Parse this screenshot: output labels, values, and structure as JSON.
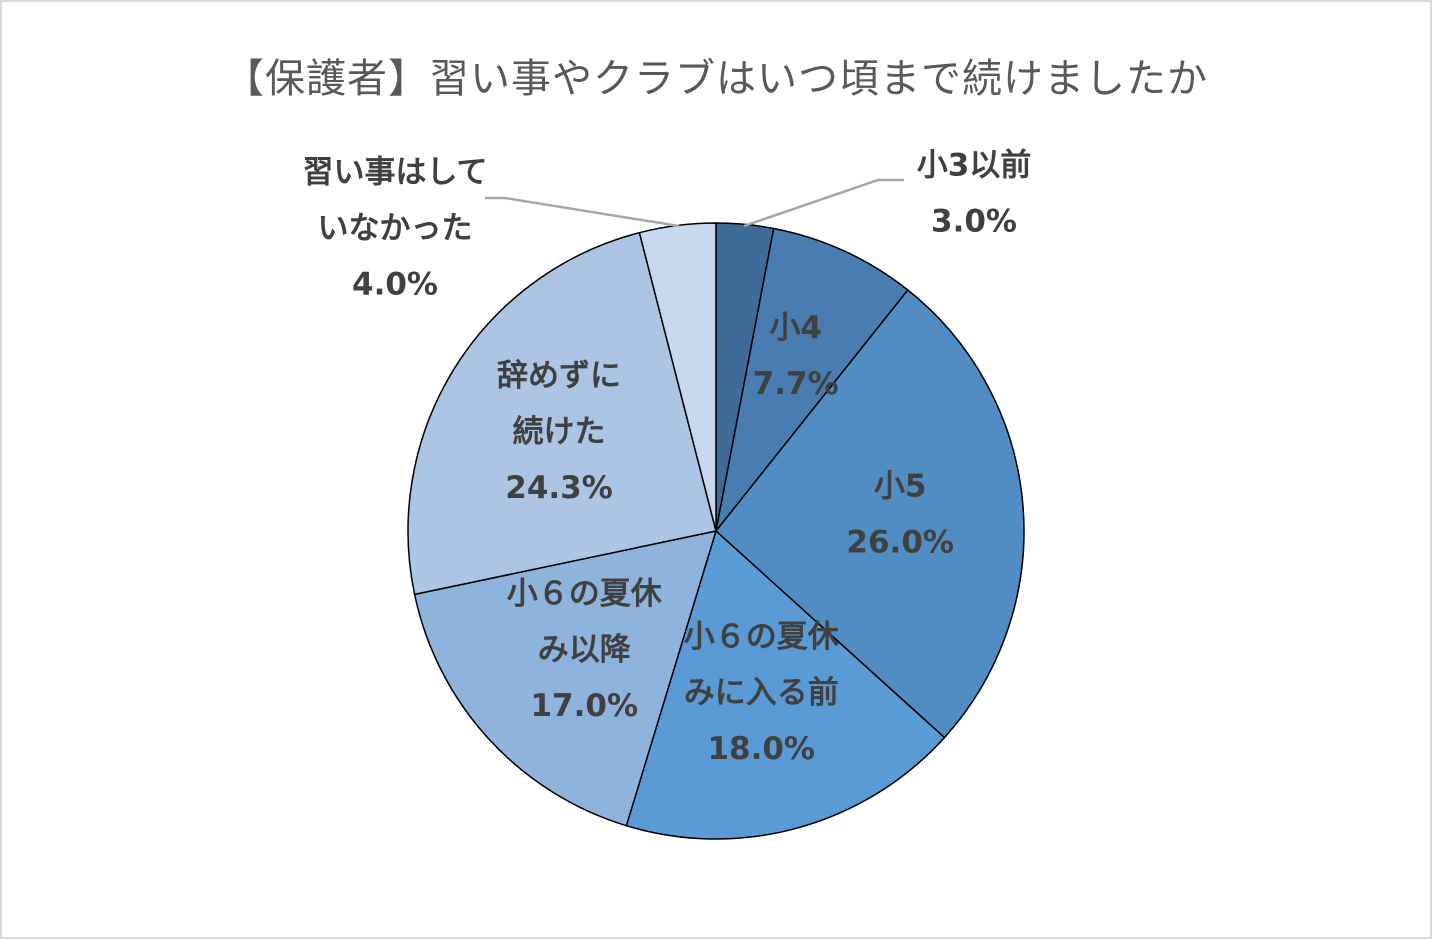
{
  "chart_data": {
    "type": "pie",
    "title": "【保護者】習い事やクラブはいつ頃まで続けましたか",
    "slices": [
      {
        "label_lines": [
          "小3以前"
        ],
        "value": 3.0,
        "value_label": "3.0%",
        "color": "#3f6b98",
        "label_outside": true
      },
      {
        "label_lines": [
          "小4"
        ],
        "value": 7.7,
        "value_label": "7.7%",
        "color": "#497db1",
        "label_outside": false
      },
      {
        "label_lines": [
          "小5"
        ],
        "value": 26.0,
        "value_label": "26.0%",
        "color": "#518dc3",
        "label_outside": false
      },
      {
        "label_lines": [
          "小６の夏休",
          "みに入る前"
        ],
        "value": 18.0,
        "value_label": "18.0%",
        "color": "#5b9bd5",
        "label_outside": false
      },
      {
        "label_lines": [
          "小６の夏休",
          "み以降"
        ],
        "value": 17.0,
        "value_label": "17.0%",
        "color": "#8eb4de",
        "label_outside": false
      },
      {
        "label_lines": [
          "辞めずに",
          "続けた"
        ],
        "value": 24.3,
        "value_label": "24.3%",
        "color": "#adc5e5",
        "label_outside": false
      },
      {
        "label_lines": [
          "習い事はして",
          "いなかった"
        ],
        "value": 4.0,
        "value_label": "4.0%",
        "color": "#c7d7ed",
        "label_outside": true
      }
    ],
    "start_angle": "12 o'clock",
    "direction": "clockwise",
    "legend": "none",
    "leader_line_color": "#a6a6a6",
    "slice_border_color": "#000000"
  }
}
